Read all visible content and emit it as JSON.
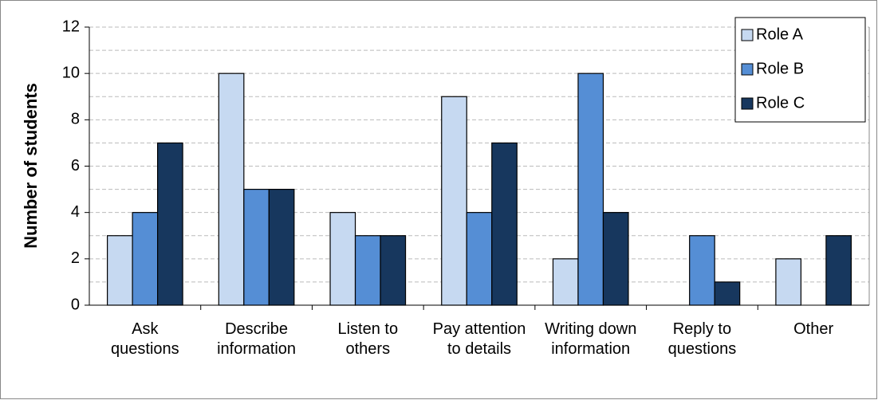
{
  "chart_data": {
    "type": "bar",
    "y_label": "Number of students",
    "categories": [
      "Ask questions",
      "Describe information",
      "Listen to others",
      "Pay attention to details",
      "Writing down information",
      "Reply to questions",
      "Other"
    ],
    "series": [
      {
        "name": "Role A",
        "color": "#c6d9f1",
        "values": [
          3,
          10,
          4,
          9,
          2,
          0,
          2
        ]
      },
      {
        "name": "Role B",
        "color": "#558ed5",
        "values": [
          4,
          5,
          3,
          4,
          10,
          3,
          0
        ]
      },
      {
        "name": "Role C",
        "color": "#17375e",
        "values": [
          7,
          5,
          3,
          7,
          4,
          1,
          3
        ]
      }
    ],
    "ylim": [
      0,
      12
    ],
    "yticks": [
      0,
      2,
      4,
      6,
      8,
      10,
      12
    ],
    "grid": true,
    "legend": "top-right"
  }
}
